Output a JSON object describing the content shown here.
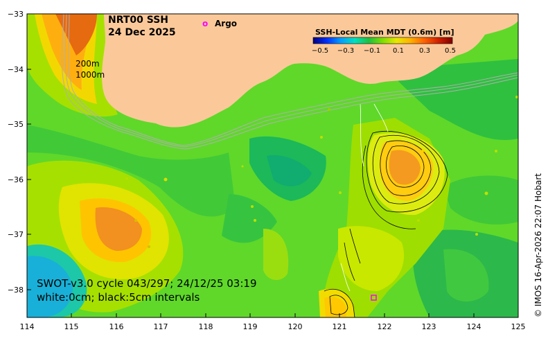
{
  "title": {
    "line1": "NRT00 SSH",
    "line2": "24 Dec 2025"
  },
  "legend": {
    "argo_marker": "o",
    "argo_label": "Argo"
  },
  "depth_labels": [
    "200m",
    "1000m"
  ],
  "colorbar": {
    "title": "SSH-Local Mean MDT (0.6m) [m]",
    "ticks": [
      "−0.5",
      "−0.3",
      "−0.1",
      "0.1",
      "0.3",
      "0.5"
    ],
    "colors": [
      "#00007f",
      "#0030ff",
      "#00a0ff",
      "#00e0c0",
      "#20c040",
      "#7fdf00",
      "#e8e800",
      "#ffb000",
      "#ff6000",
      "#d02000",
      "#800000"
    ]
  },
  "x_ticks": [
    "114",
    "115",
    "116",
    "117",
    "118",
    "119",
    "120",
    "121",
    "122",
    "123",
    "124",
    "125"
  ],
  "y_ticks": [
    "−33",
    "−34",
    "−35",
    "−36",
    "−37",
    "−38"
  ],
  "swot_info": {
    "line1": "SWOT-v3.0 cycle 043/297; 24/12/25 03:19",
    "line2": "white:0cm; black:5cm intervals"
  },
  "credit": "© IMOS 16-Apr-2026 22:07 Hobart",
  "colors": {
    "land": "#fbc999",
    "argo": "#ff00ff"
  }
}
